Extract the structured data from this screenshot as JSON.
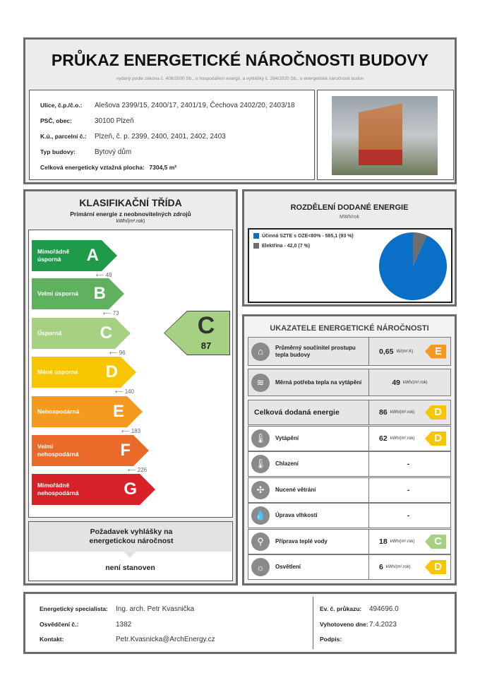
{
  "header": {
    "title": "PRŮKAZ ENERGETICKÉ NÁROČNOSTI BUDOVY",
    "subtitle": "vydaný podle zákona č. 406/2000 Sb., o hospodaření energií, a vyhlášky č. 264/2020 Sb., o energetické náročnosti budov"
  },
  "building": {
    "street_label": "Ulice, č.p./č.o.:",
    "street": "Alešova 2399/15, 2400/17, 2401/19, Čechova 2402/20, 2403/18",
    "zip_label": "PSČ, obec:",
    "zip": "30100 Plzeň",
    "parcel_label": "K.ú., parcelní č.:",
    "parcel": "Plzeň, č. p. 2399, 2400, 2401, 2402, 2403",
    "type_label": "Typ budovy:",
    "type": "Bytový dům",
    "area_label": "Celková energeticky vztažná plocha:",
    "area": "7304,5 m²"
  },
  "classification": {
    "title": "KLASIFIKAČNÍ TŘÍDA",
    "subtitle": "Primární energie z neobnovitelných zdrojů",
    "unit": "kWh/(m².rok)",
    "classes": [
      {
        "letter": "A",
        "name": "Mimořádně úsporná",
        "color": "#1e9a4a",
        "threshold": "49"
      },
      {
        "letter": "B",
        "name": "Velmi úsporná",
        "color": "#5fb05f",
        "threshold": "73"
      },
      {
        "letter": "C",
        "name": "Úsporná",
        "color": "#a6d183",
        "threshold": "96"
      },
      {
        "letter": "D",
        "name": "Méně úsporná",
        "color": "#f7c600",
        "threshold": "140"
      },
      {
        "letter": "E",
        "name": "Nehospodárná",
        "color": "#f39a1f",
        "threshold": "183"
      },
      {
        "letter": "F",
        "name": "Velmi nehospodárná",
        "color": "#ea6a2a",
        "threshold": "226"
      },
      {
        "letter": "G",
        "name": "Mimořádně nehospodárná",
        "color": "#d72027"
      }
    ],
    "result": {
      "letter": "C",
      "value": "87",
      "color": "#a6d183"
    },
    "requirement_title": "Požadavek vyhlášky na energetickou náročnost",
    "requirement_value": "není stanoven"
  },
  "distribution": {
    "title": "ROZDĚLENÍ DODANÉ ENERGIE",
    "unit": "MWh/rok",
    "chart_data": {
      "type": "pie",
      "series": [
        {
          "name": "Účinná SZTE s OZE<80% - 585,1 (93 %)",
          "value": 585.1,
          "percent": 93,
          "color": "#0a6fc7"
        },
        {
          "name": "Elektřina - 42,0 (7 %)",
          "value": 42.0,
          "percent": 7,
          "color": "#6d6d6d"
        }
      ]
    }
  },
  "indicators": {
    "title": "UKAZATELE ENERGETICKÉ NÁROČNOSTI",
    "rows": [
      {
        "name": "Průměrný součinitel prostupu tepla budovy",
        "icon": "house-icon",
        "glyph": "⌂",
        "value": "0,65",
        "unit": "W/(m².K)",
        "class": "E",
        "color": "#f39a1f",
        "shaded": true
      },
      {
        "name": "Měrná potřeba tepla na vytápění",
        "icon": "heat-waves-icon",
        "glyph": "≋",
        "value": "49",
        "unit": "kWh/(m².rok)",
        "shaded": true
      },
      {
        "name": "Celková dodaná energie",
        "value": "86",
        "unit": "kWh/(m².rok)",
        "class": "D",
        "color": "#f7c600",
        "shaded": true,
        "big": true
      },
      {
        "name": "Vytápění",
        "icon": "thermometer-plus-icon",
        "glyph": "🌡",
        "value": "62",
        "unit": "kWh/(m².rok)",
        "class": "D",
        "color": "#f7c600"
      },
      {
        "name": "Chlazení",
        "icon": "thermometer-minus-icon",
        "glyph": "🌡",
        "value": "-"
      },
      {
        "name": "Nucené větrání",
        "icon": "fan-icon",
        "glyph": "✣",
        "value": "-"
      },
      {
        "name": "Úprava vlhkosti",
        "icon": "humidity-icon",
        "glyph": "💧",
        "value": "-"
      },
      {
        "name": "Příprava teplé vody",
        "icon": "faucet-icon",
        "glyph": "⚲",
        "value": "18",
        "unit": "kWh/(m².rok)",
        "class": "C",
        "color": "#a6d183"
      },
      {
        "name": "Osvětlení",
        "icon": "lightbulb-icon",
        "glyph": "☼",
        "value": "6",
        "unit": "kWh/(m².rok)",
        "class": "D",
        "color": "#f7c600"
      }
    ]
  },
  "footer": {
    "specialist_label": "Energetický specialista:",
    "specialist": "Ing. arch. Petr Kvasnička",
    "cert_label": "Osvědčení č.:",
    "cert": "1382",
    "contact_label": "Kontakt:",
    "contact": "Petr.Kvasnicka@ArchEnergy.cz",
    "ev_label": "Ev. č. průkazu:",
    "ev": "494696.0",
    "date_label": "Vyhotoveno dne:",
    "date": "7.4.2023",
    "sign_label": "Podpis:"
  }
}
